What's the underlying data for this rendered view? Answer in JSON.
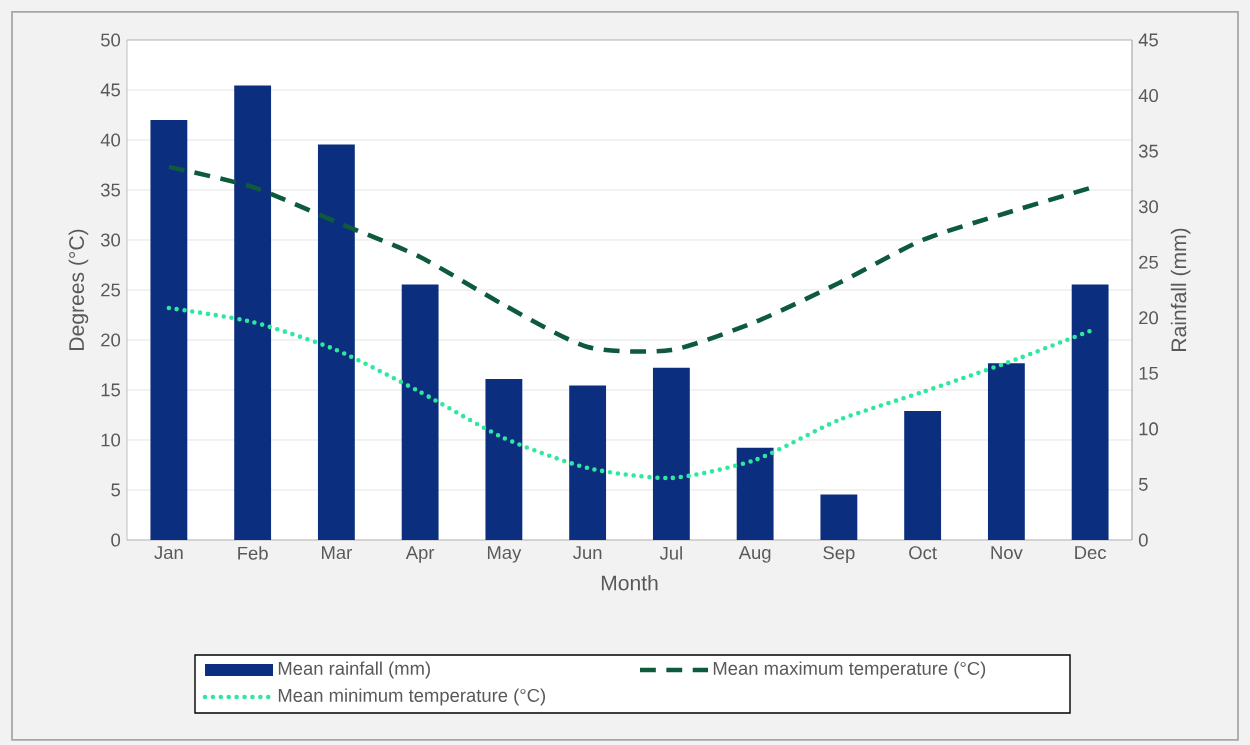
{
  "chart_data": {
    "type": "bar",
    "xlabel": "Month",
    "ylabel": "Degrees (°C)",
    "y2label": "Rainfall (mm)",
    "categories": [
      "Jan",
      "Feb",
      "Mar",
      "Apr",
      "May",
      "Jun",
      "Jul",
      "Aug",
      "Sep",
      "Oct",
      "Nov",
      "Dec"
    ],
    "series": [
      {
        "name": "Mean rainfall (mm)",
        "axis": "y2",
        "color": "#0b2f7e",
        "values": [
          37.8,
          40.9,
          35.6,
          23.0,
          14.5,
          13.9,
          15.5,
          8.3,
          4.1,
          11.6,
          15.9,
          23.0
        ]
      },
      {
        "name": "Mean maximum temperature (°C)",
        "type": "line",
        "line_style": "dashed",
        "color": "#0d5a3c",
        "values": [
          37.3,
          35.3,
          31.8,
          28.3,
          23.5,
          19.3,
          19.0,
          21.8,
          25.7,
          30.0,
          32.7,
          35.2
        ]
      },
      {
        "name": "Mean minimum temperature (°C)",
        "type": "line",
        "line_style": "dotted",
        "color": "#2ee8a0",
        "values": [
          23.2,
          21.8,
          19.0,
          14.8,
          10.2,
          7.2,
          6.2,
          8.0,
          12.0,
          14.8,
          17.7,
          20.9
        ]
      }
    ],
    "ylim": [
      0,
      50
    ],
    "yticks": [
      0,
      5,
      10,
      15,
      20,
      25,
      30,
      35,
      40,
      45,
      50
    ],
    "y2lim": [
      0,
      45
    ],
    "y2ticks": [
      0,
      5,
      10,
      15,
      20,
      25,
      30,
      35,
      40,
      45
    ],
    "grid": "y",
    "legend": "bottom"
  }
}
